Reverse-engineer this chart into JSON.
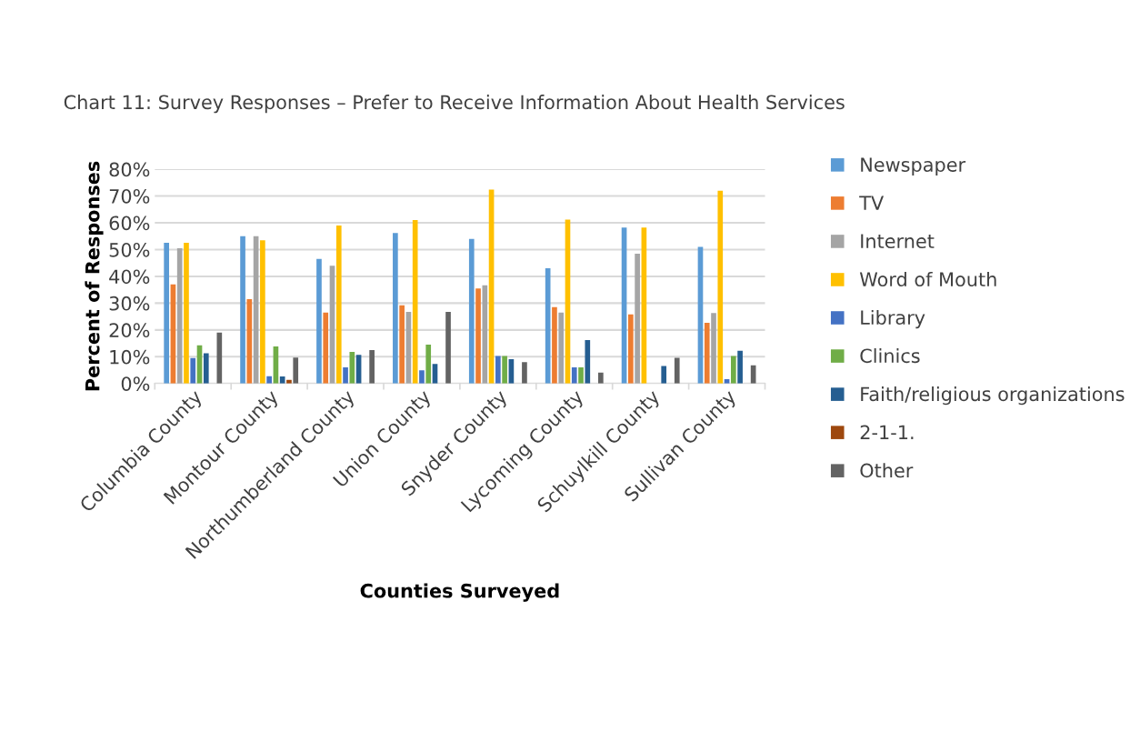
{
  "chart_data": {
    "type": "bar",
    "title": "Chart 11: Survey Responses – Prefer to Receive Information About Health Services",
    "xlabel": "Counties Surveyed",
    "ylabel": "Percent of Responses",
    "categories": [
      "Columbia County",
      "Montour County",
      "Northumberland County",
      "Union County",
      "Snyder County",
      "Lycoming County",
      "Schuylkill County",
      "Sullivan County"
    ],
    "series": [
      {
        "name": "Newspaper",
        "color": "#5b9bd5",
        "values": [
          52.5,
          55,
          46.5,
          56.2,
          54,
          43,
          58.2,
          51
        ]
      },
      {
        "name": "TV",
        "color": "#ed7d31",
        "values": [
          37,
          31.5,
          26.5,
          29.2,
          35.5,
          28.5,
          25.8,
          22.7
        ]
      },
      {
        "name": "Internet",
        "color": "#a5a5a5",
        "values": [
          50.5,
          55,
          44,
          26.7,
          36.7,
          26.5,
          48.5,
          26.3
        ]
      },
      {
        "name": "Word of Mouth",
        "color": "#ffc000",
        "values": [
          52.5,
          53.5,
          59,
          61,
          72.4,
          61.2,
          58.2,
          72
        ]
      },
      {
        "name": "Library",
        "color": "#4472c4",
        "values": [
          9.5,
          2.7,
          6,
          4.9,
          10.3,
          6,
          0,
          1.6
        ]
      },
      {
        "name": "Clinics",
        "color": "#70ad47",
        "values": [
          14.3,
          13.8,
          11.8,
          14.5,
          10.3,
          6,
          0,
          10.3
        ]
      },
      {
        "name": "Faith/religious organizations",
        "color": "#255e91",
        "values": [
          11.3,
          2.6,
          10.7,
          7.3,
          9.1,
          16.2,
          6.5,
          12.2
        ]
      },
      {
        "name": "2-1-1.",
        "color": "#9e480e",
        "values": [
          0,
          1.4,
          0,
          0,
          0,
          0,
          0,
          0
        ]
      },
      {
        "name": "Other",
        "color": "#636363",
        "values": [
          19,
          9.7,
          12.5,
          26.7,
          8,
          4.1,
          9.6,
          6.8
        ]
      }
    ],
    "ylim": [
      0,
      80
    ],
    "yticks": [
      {
        "value": 0,
        "label": "0%"
      },
      {
        "value": 10,
        "label": "10%"
      },
      {
        "value": 20,
        "label": "20%"
      },
      {
        "value": 30,
        "label": "30%"
      },
      {
        "value": 40,
        "label": "40%"
      },
      {
        "value": 50,
        "label": "50%"
      },
      {
        "value": 60,
        "label": "60%"
      },
      {
        "value": 70,
        "label": "70%"
      },
      {
        "value": 80,
        "label": "80%"
      }
    ],
    "grid": "y",
    "legend": "right"
  }
}
